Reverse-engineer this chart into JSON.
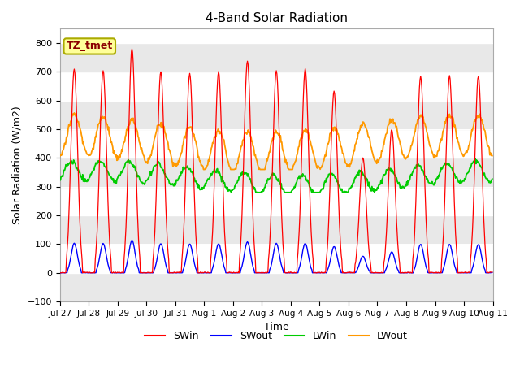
{
  "title": "4-Band Solar Radiation",
  "xlabel": "Time",
  "ylabel": "Solar Radiation (W/m2)",
  "ylim": [
    -100,
    850
  ],
  "yticks": [
    -100,
    0,
    100,
    200,
    300,
    400,
    500,
    600,
    700,
    800
  ],
  "legend_label": "TZ_tmet",
  "legend_box_color": "#ffff99",
  "legend_box_edge": "#aaaa00",
  "series_colors": {
    "SWin": "#ff0000",
    "SWout": "#0000ff",
    "LWin": "#00cc00",
    "LWout": "#ff9900"
  },
  "n_days": 15,
  "dt_hours": 0.5,
  "day_labels": [
    "Jul 27",
    "Jul 28",
    "Jul 29",
    "Jul 30",
    "Jul 31",
    "Aug 1",
    "Aug 2",
    "Aug 3",
    "Aug 4",
    "Aug 5",
    "Aug 6",
    "Aug 7",
    "Aug 8",
    "Aug 9",
    "Aug 10",
    "Aug 11"
  ],
  "peak_SWin": [
    710,
    705,
    780,
    700,
    695,
    700,
    740,
    705,
    710,
    630,
    400,
    500,
    685,
    685,
    685
  ],
  "band_color_light": "#e8e8e8",
  "band_color_dark": "#d0d0d0",
  "plot_bg": "#ffffff"
}
